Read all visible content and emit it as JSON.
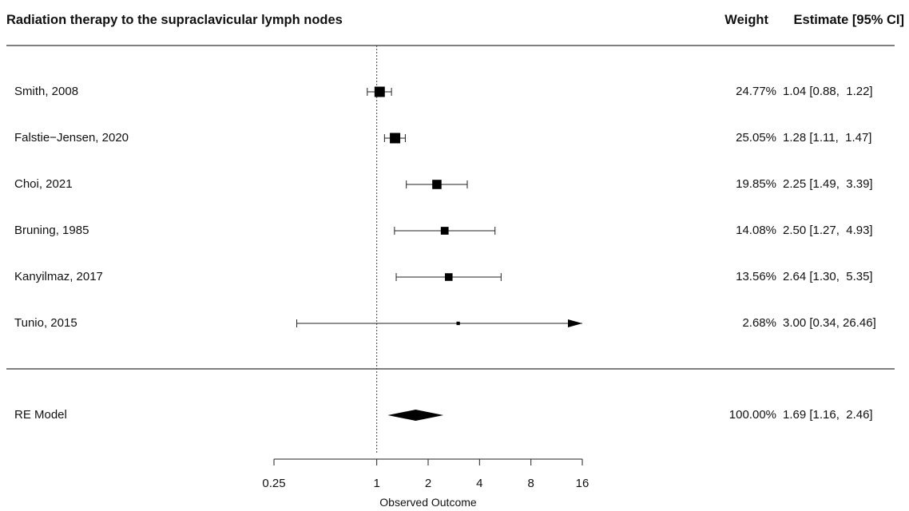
{
  "chart_data": {
    "type": "forest",
    "title": "Radiation therapy to the supraclavicular lymph nodes",
    "weight_header": "Weight",
    "estimate_header": "Estimate [95% CI]",
    "xlabel": "Observed Outcome",
    "x_scale": "log2",
    "x_ticks": [
      0.25,
      1,
      2,
      4,
      8,
      16
    ],
    "x_tick_labels": [
      "0.25",
      "1",
      "2",
      "4",
      "8",
      "16"
    ],
    "reference_line": 1,
    "studies": [
      {
        "label": "Smith, 2008",
        "estimate": 1.04,
        "lower": 0.88,
        "upper": 1.22,
        "weight": 24.77,
        "weight_text": "24.77%",
        "est_text": "1.04 [0.88,  1.22]",
        "arrow_right": false
      },
      {
        "label": "Falstie−Jensen, 2020",
        "estimate": 1.28,
        "lower": 1.11,
        "upper": 1.47,
        "weight": 25.05,
        "weight_text": "25.05%",
        "est_text": "1.28 [1.11,  1.47]",
        "arrow_right": false
      },
      {
        "label": "Choi, 2021",
        "estimate": 2.25,
        "lower": 1.49,
        "upper": 3.39,
        "weight": 19.85,
        "weight_text": "19.85%",
        "est_text": "2.25 [1.49,  3.39]",
        "arrow_right": false
      },
      {
        "label": "Bruning, 1985",
        "estimate": 2.5,
        "lower": 1.27,
        "upper": 4.93,
        "weight": 14.08,
        "weight_text": "14.08%",
        "est_text": "2.50 [1.27,  4.93]",
        "arrow_right": false
      },
      {
        "label": "Kanyilmaz, 2017",
        "estimate": 2.64,
        "lower": 1.3,
        "upper": 5.35,
        "weight": 13.56,
        "weight_text": "13.56%",
        "est_text": "2.64 [1.30,  5.35]",
        "arrow_right": false
      },
      {
        "label": "Tunio, 2015",
        "estimate": 3.0,
        "lower": 0.34,
        "upper": 26.46,
        "weight": 2.68,
        "weight_text": "2.68%",
        "est_text": "3.00 [0.34, 26.46]",
        "arrow_right": true
      }
    ],
    "summary": {
      "label": "RE Model",
      "estimate": 1.69,
      "lower": 1.16,
      "upper": 2.46,
      "weight": 100.0,
      "weight_text": "100.00%",
      "est_text": "1.69 [1.16,  2.46]"
    }
  }
}
